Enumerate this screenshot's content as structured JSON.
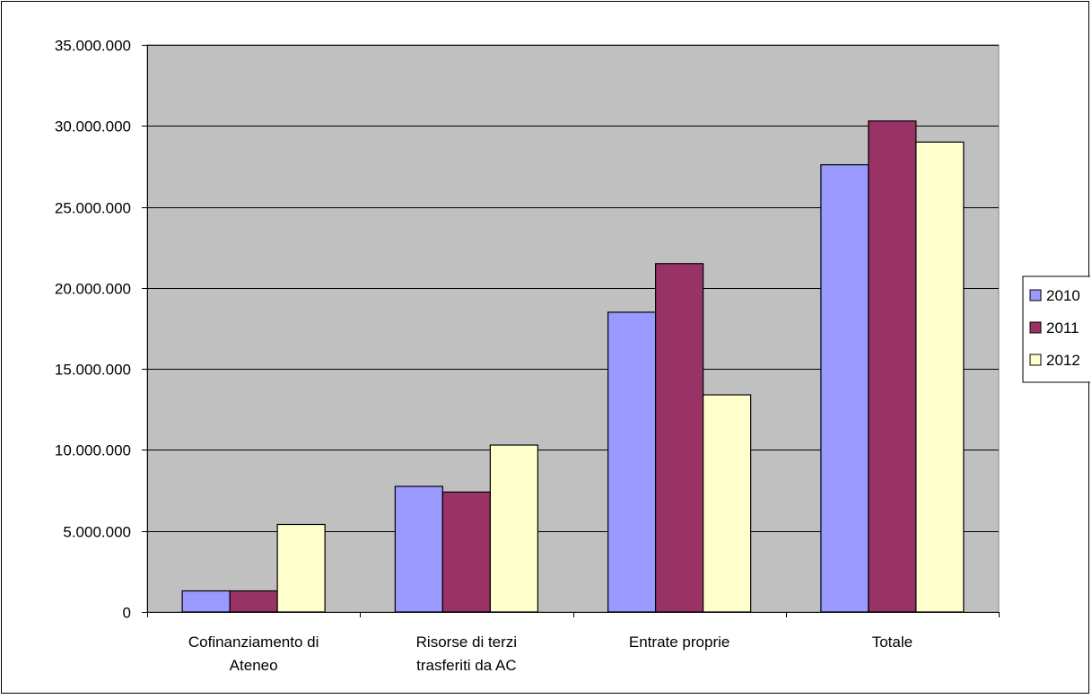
{
  "chart_data": {
    "type": "bar",
    "categories": [
      [
        "Cofinanziamento di",
        "Ateneo"
      ],
      [
        "Risorse di terzi",
        "trasferiti da AC"
      ],
      [
        "Entrate proprie"
      ],
      [
        "Totale"
      ]
    ],
    "series": [
      {
        "name": "2010",
        "color": "#9999ff",
        "values": [
          1300000,
          7750000,
          18500000,
          27600000
        ]
      },
      {
        "name": "2011",
        "color": "#993366",
        "values": [
          1300000,
          7400000,
          21500000,
          30300000
        ]
      },
      {
        "name": "2012",
        "color": "#ffffcc",
        "values": [
          5400000,
          10300000,
          13400000,
          29000000
        ]
      }
    ],
    "ylim": [
      0,
      35000000
    ],
    "yticks": [
      "0",
      "5.000.000",
      "10.000.000",
      "15.000.000",
      "20.000.000",
      "25.000.000",
      "30.000.000",
      "35.000.000"
    ],
    "title": "",
    "xlabel": "",
    "ylabel": "",
    "grid": true,
    "plot_background": "#c0c0c0",
    "legend_position": "right"
  }
}
